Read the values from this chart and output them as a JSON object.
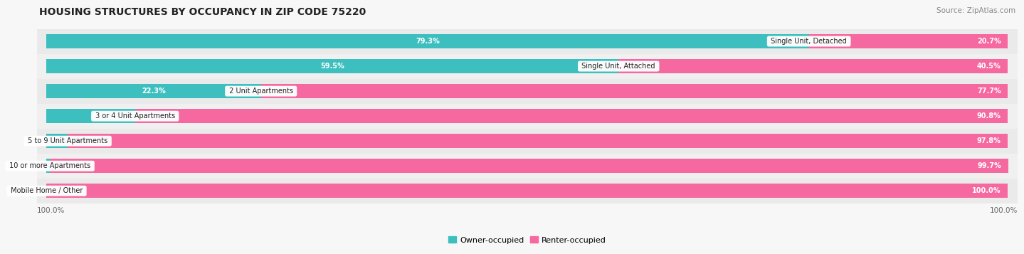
{
  "title": "HOUSING STRUCTURES BY OCCUPANCY IN ZIP CODE 75220",
  "source": "Source: ZipAtlas.com",
  "categories": [
    "Single Unit, Detached",
    "Single Unit, Attached",
    "2 Unit Apartments",
    "3 or 4 Unit Apartments",
    "5 to 9 Unit Apartments",
    "10 or more Apartments",
    "Mobile Home / Other"
  ],
  "owner_pct": [
    79.3,
    59.5,
    22.3,
    9.2,
    2.2,
    0.35,
    0.0
  ],
  "renter_pct": [
    20.7,
    40.5,
    77.7,
    90.8,
    97.8,
    99.7,
    100.0
  ],
  "owner_color": "#3dbfbf",
  "renter_color": "#f569a0",
  "owner_label": "Owner-occupied",
  "renter_label": "Renter-occupied",
  "title_fontsize": 10,
  "source_fontsize": 7.5,
  "label_fontsize": 7,
  "bar_label_fontsize": 7,
  "legend_fontsize": 8,
  "axis_label_fontsize": 7.5
}
